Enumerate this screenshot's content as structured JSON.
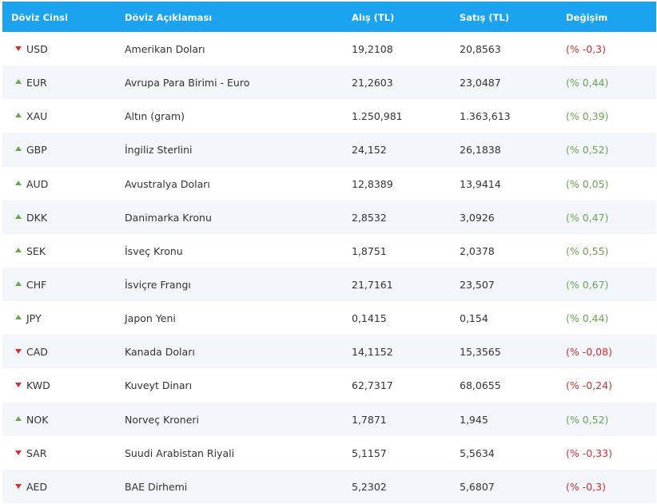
{
  "table": {
    "headers": [
      "Döviz Cinsi",
      "Döviz Açıklaması",
      "Alış (TL)",
      "Satış (TL)",
      "Değişim"
    ],
    "rows": [
      {
        "code": "USD",
        "name": "Amerikan Doları",
        "buy": "19,2108",
        "sell": "20,8563",
        "change": "(% -0,3)",
        "trend": "down"
      },
      {
        "code": "EUR",
        "name": "Avrupa Para Birimi - Euro",
        "buy": "21,2603",
        "sell": "23,0487",
        "change": "(% 0,44)",
        "trend": "up"
      },
      {
        "code": "XAU",
        "name": "Altın (gram)",
        "buy": "1.250,981",
        "sell": "1.363,613",
        "change": "(% 0,39)",
        "trend": "up"
      },
      {
        "code": "GBP",
        "name": "İngiliz Sterlini",
        "buy": "24,152",
        "sell": "26,1838",
        "change": "(% 0,52)",
        "trend": "up"
      },
      {
        "code": "AUD",
        "name": "Avustralya Doları",
        "buy": "12,8389",
        "sell": "13,9414",
        "change": "(% 0,05)",
        "trend": "up"
      },
      {
        "code": "DKK",
        "name": "Danimarka Kronu",
        "buy": "2,8532",
        "sell": "3,0926",
        "change": "(% 0,47)",
        "trend": "up"
      },
      {
        "code": "SEK",
        "name": "İsveç Kronu",
        "buy": "1,8751",
        "sell": "2,0378",
        "change": "(% 0,55)",
        "trend": "up"
      },
      {
        "code": "CHF",
        "name": "İsviçre Frangı",
        "buy": "21,7161",
        "sell": "23,507",
        "change": "(% 0,67)",
        "trend": "up"
      },
      {
        "code": "JPY",
        "name": "Japon Yeni",
        "buy": "0,1415",
        "sell": "0,154",
        "change": "(% 0,44)",
        "trend": "up"
      },
      {
        "code": "CAD",
        "name": "Kanada Doları",
        "buy": "14,1152",
        "sell": "15,3565",
        "change": "(% -0,08)",
        "trend": "down"
      },
      {
        "code": "KWD",
        "name": "Kuveyt Dinarı",
        "buy": "62,7317",
        "sell": "68,0655",
        "change": "(% -0,24)",
        "trend": "down"
      },
      {
        "code": "NOK",
        "name": "Norveç Kroneri",
        "buy": "1,7871",
        "sell": "1,945",
        "change": "(% 0,52)",
        "trend": "up"
      },
      {
        "code": "SAR",
        "name": "Suudi Arabistan Riyali",
        "buy": "5,1157",
        "sell": "5,5634",
        "change": "(% -0,33)",
        "trend": "down"
      },
      {
        "code": "AED",
        "name": "BAE Dirhemi",
        "buy": "5,2302",
        "sell": "5,6807",
        "change": "(% -0,3)",
        "trend": "down"
      }
    ]
  },
  "colors": {
    "header_bg": "#1aa4f0",
    "up": "#6aa84f",
    "down": "#d32f2f",
    "row_alt": "#f2f6fa"
  },
  "icons": {
    "up": "triangle-up-icon",
    "down": "triangle-down-icon"
  }
}
